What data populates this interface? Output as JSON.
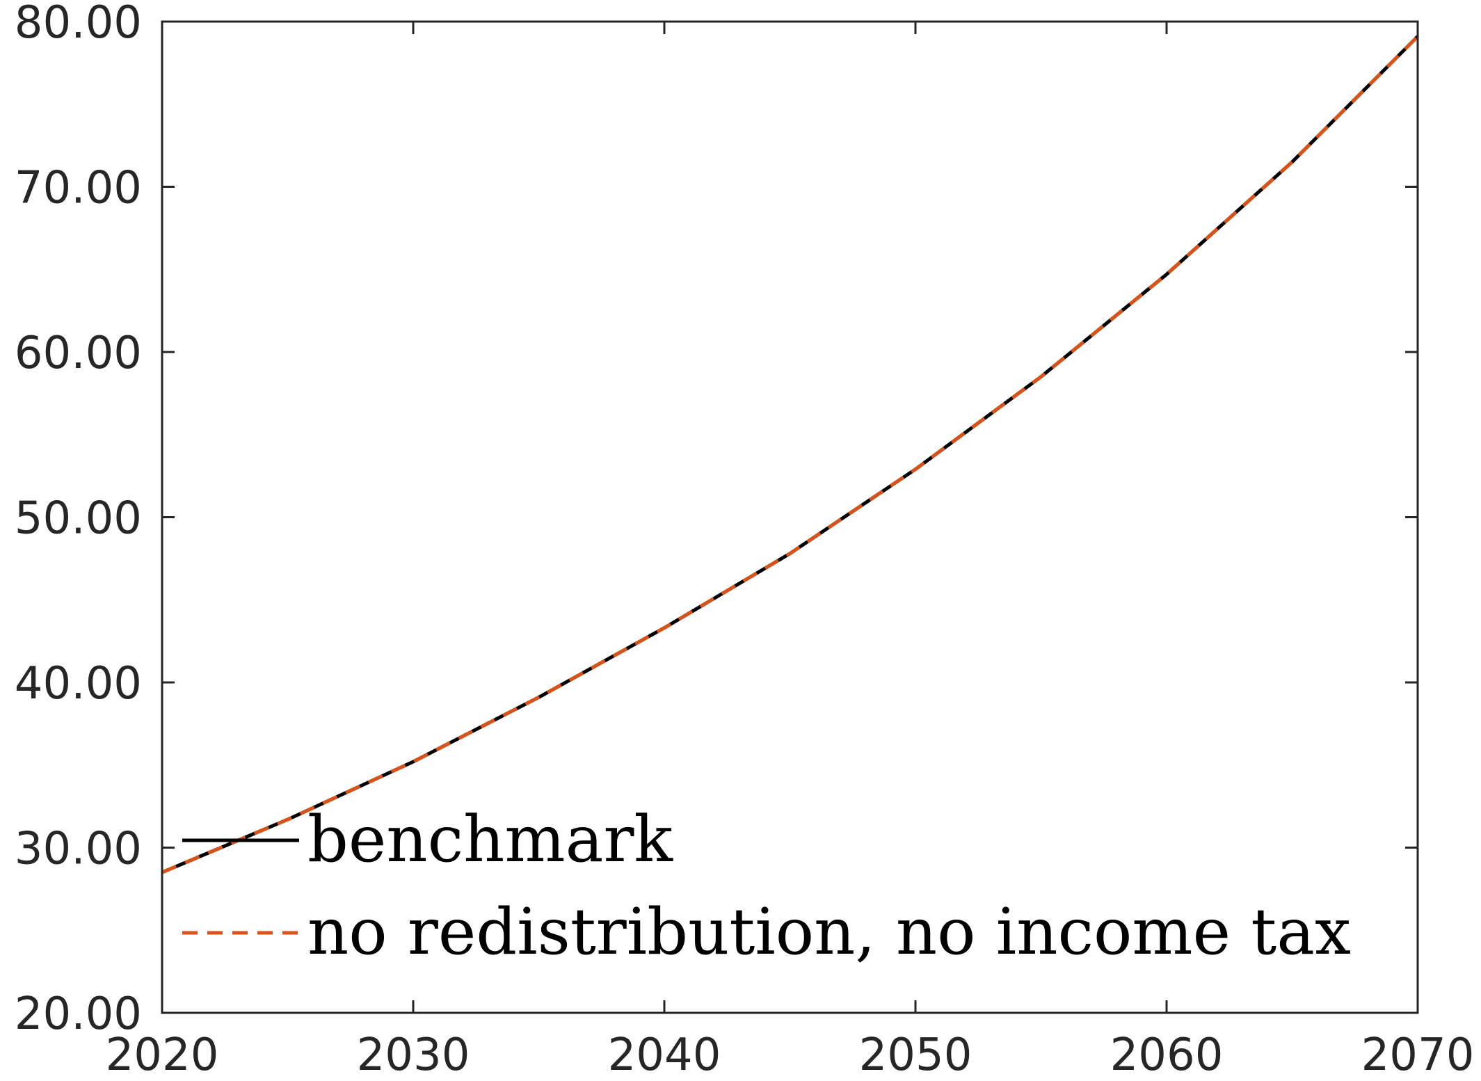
{
  "chart_data": {
    "type": "line",
    "xlim": [
      2020,
      2070
    ],
    "ylim": [
      20,
      80
    ],
    "x_ticks": [
      "2020",
      "2030",
      "2040",
      "2050",
      "2060",
      "2070"
    ],
    "y_ticks": [
      "20.00",
      "30.00",
      "40.00",
      "50.00",
      "60.00",
      "70.00",
      "80.00"
    ],
    "grid": false,
    "legend_position": "bottom-left",
    "x": [
      2020,
      2025,
      2030,
      2035,
      2040,
      2045,
      2050,
      2055,
      2060,
      2065,
      2070
    ],
    "series": [
      {
        "name": "benchmark",
        "color": "#000000",
        "style": "solid",
        "values": [
          28.5,
          31.7,
          35.2,
          39.1,
          43.3,
          47.8,
          52.9,
          58.5,
          64.7,
          71.5,
          79.1
        ]
      },
      {
        "name": "no redistribution, no income tax",
        "color": "#D95319",
        "style": "dashed",
        "values": [
          28.5,
          31.7,
          35.2,
          39.1,
          43.3,
          47.8,
          52.9,
          58.5,
          64.7,
          71.5,
          79.1
        ]
      }
    ]
  }
}
